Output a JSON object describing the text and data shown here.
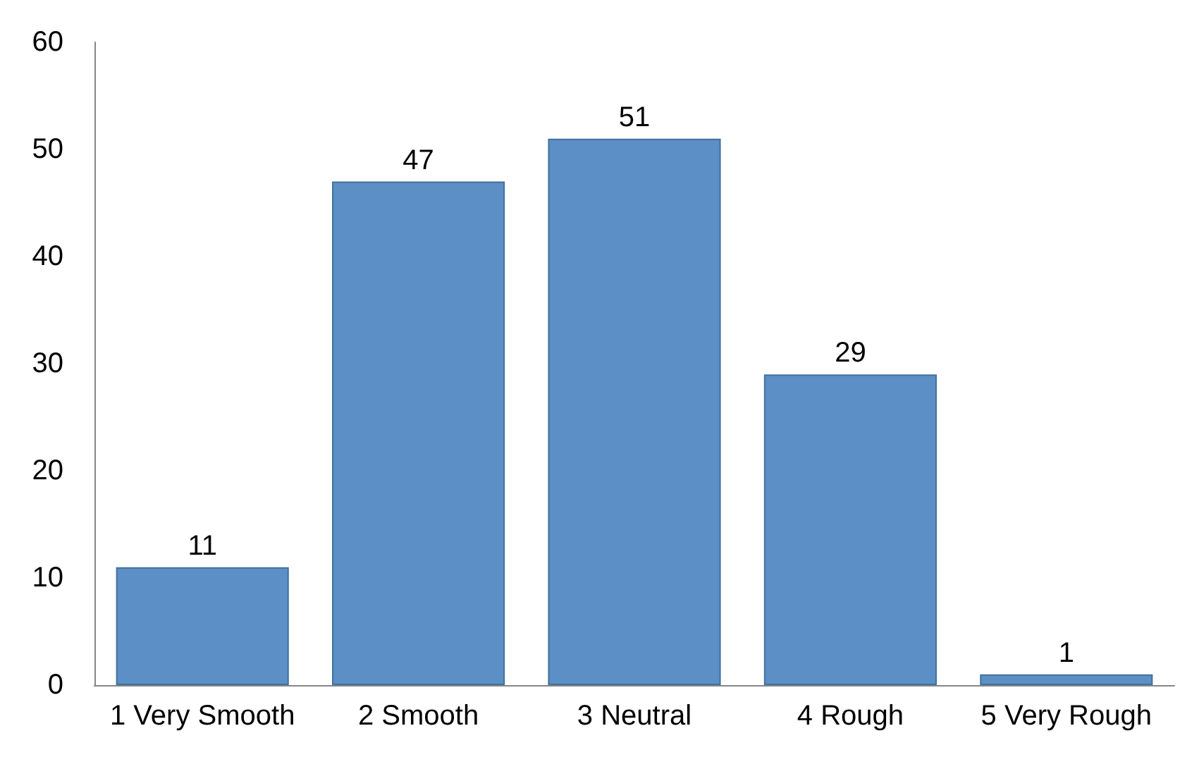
{
  "chart_data": {
    "type": "bar",
    "categories": [
      "1 Very Smooth",
      "2 Smooth",
      "3 Neutral",
      "4 Rough",
      "5 Very Rough"
    ],
    "values": [
      11,
      47,
      51,
      29,
      1
    ],
    "color": "#5b8fc6",
    "ylim": [
      0,
      60
    ],
    "yticks": [
      0,
      10,
      20,
      30,
      40,
      50,
      60
    ],
    "grid": false,
    "data_labels": true
  }
}
